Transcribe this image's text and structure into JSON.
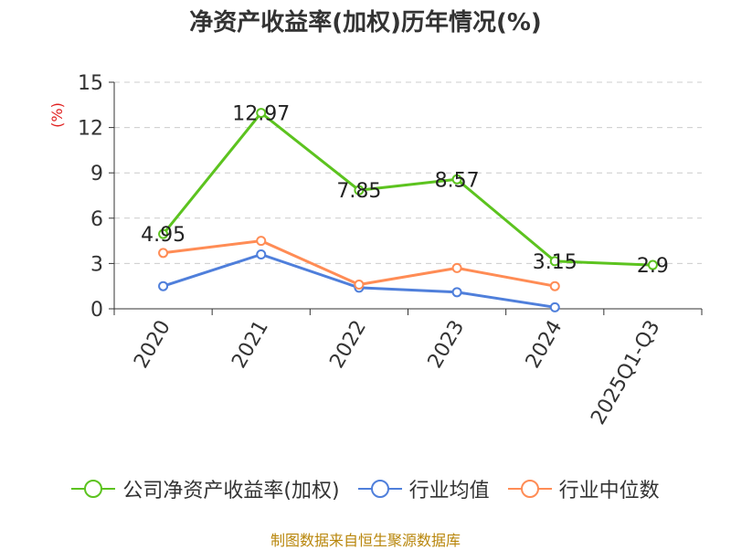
{
  "chart_data": {
    "type": "line",
    "title": "净资产收益率(加权)历年情况(%)",
    "ylabel": "(%)",
    "xlabel": "",
    "categories": [
      "2020",
      "2021",
      "2022",
      "2023",
      "2024",
      "2025Q1-Q3"
    ],
    "ylim": [
      0,
      15
    ],
    "yticks": [
      0,
      3,
      6,
      9,
      12,
      15
    ],
    "grid": true,
    "legend_position": "bottom",
    "series": [
      {
        "name": "公司净资产收益率(加权)",
        "color": "#5cc31f",
        "values": [
          4.95,
          12.97,
          7.85,
          8.57,
          3.15,
          2.9
        ],
        "labels": [
          "4.95",
          "12.97",
          "7.85",
          "8.57",
          "3.15",
          "2.9"
        ]
      },
      {
        "name": "行业均值",
        "color": "#4f7fdb",
        "values": [
          1.5,
          3.6,
          1.4,
          1.1,
          0.1,
          null
        ],
        "labels": []
      },
      {
        "name": "行业中位数",
        "color": "#ff8c55",
        "values": [
          3.7,
          4.5,
          1.6,
          2.7,
          1.5,
          null
        ],
        "labels": []
      }
    ],
    "source": "制图数据来自恒生聚源数据库"
  }
}
